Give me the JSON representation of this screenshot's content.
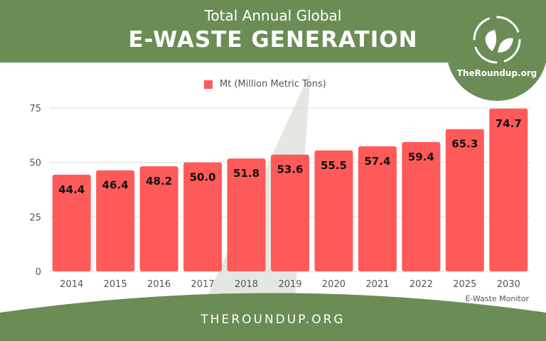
{
  "header": {
    "subtitle": "Total Annual Global",
    "title": "E-WASTE GENERATION"
  },
  "logo": {
    "text": "TheRoundup.org"
  },
  "footer": {
    "text": "THEROUNDUP.ORG"
  },
  "colors": {
    "bar": "#ff5a5a",
    "brand": "#6b8c55"
  },
  "chart_data": {
    "type": "bar",
    "categories": [
      "2014",
      "2015",
      "2016",
      "2017",
      "2018",
      "2019",
      "2020",
      "2021",
      "2022",
      "2025",
      "2030"
    ],
    "series": [
      {
        "name": "Mt (Million Metric Tons)",
        "values": [
          44.4,
          46.4,
          48.2,
          50.0,
          51.8,
          53.6,
          55.5,
          57.4,
          59.4,
          65.3,
          74.7
        ]
      }
    ],
    "data_labels": [
      "44.4",
      "46.4",
      "48.2",
      "50.0",
      "51.8",
      "53.6",
      "55.5",
      "57.4",
      "59.4",
      "65.3",
      "74.7"
    ],
    "yticks": [
      "0",
      "25",
      "50",
      "75"
    ],
    "ylim": [
      0,
      75
    ],
    "grid": true,
    "legend": "top-center",
    "source": "E-Waste Monitor"
  }
}
